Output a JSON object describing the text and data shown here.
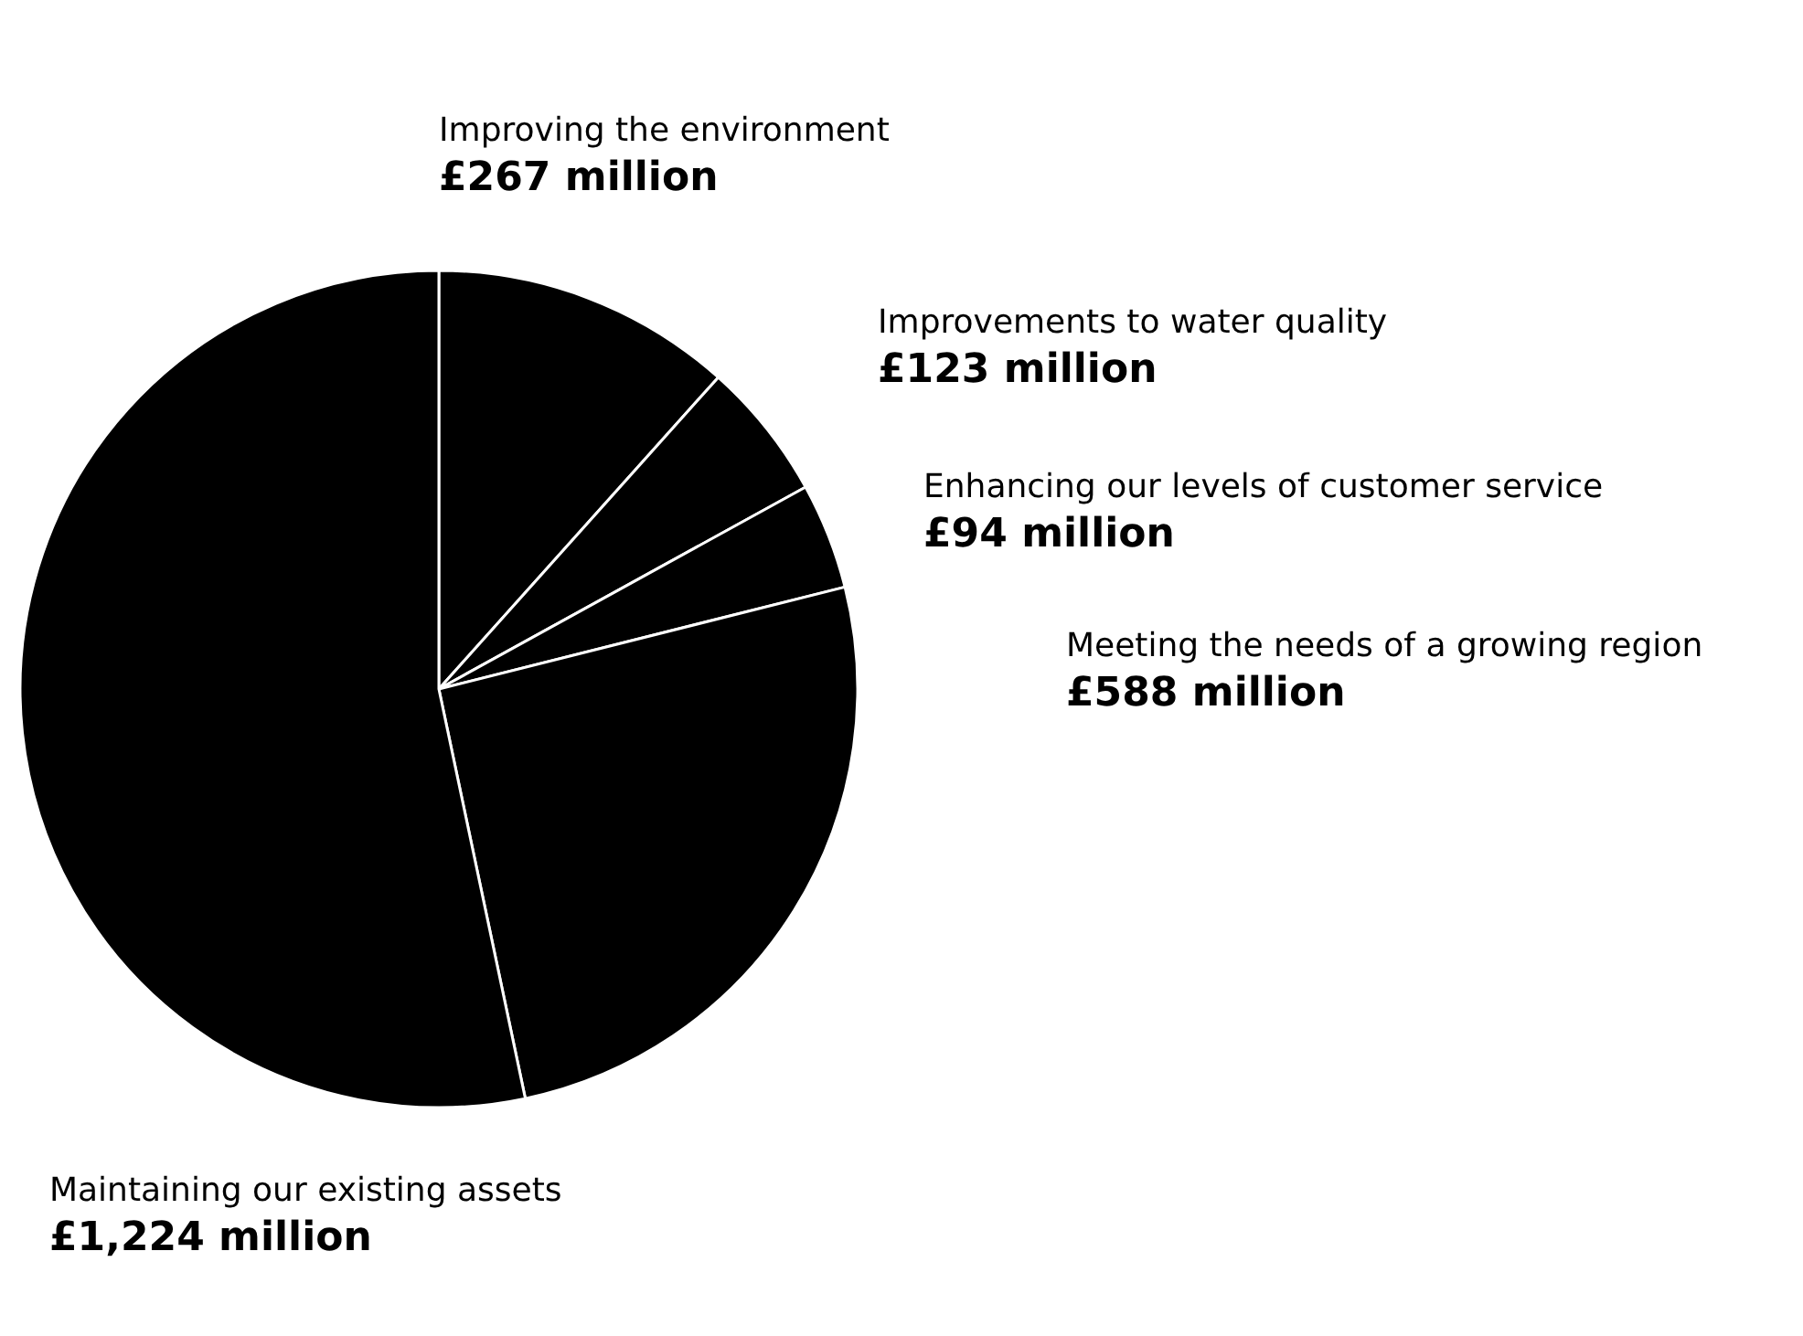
{
  "chart_data": {
    "type": "pie",
    "categories": [
      "Improving the environment",
      "Improvements to water quality",
      "Enhancing our levels of customer service",
      "Meeting the needs of a growing region",
      "Maintaining our existing assets"
    ],
    "values": [
      267,
      123,
      94,
      588,
      1224
    ],
    "value_labels": [
      "£267 million",
      "£123 million",
      "£94 million",
      "£588 million",
      "£1,224 million"
    ],
    "colors": [
      "#000000",
      "#000000",
      "#000000",
      "#000000",
      "#000000"
    ],
    "legend": false
  }
}
